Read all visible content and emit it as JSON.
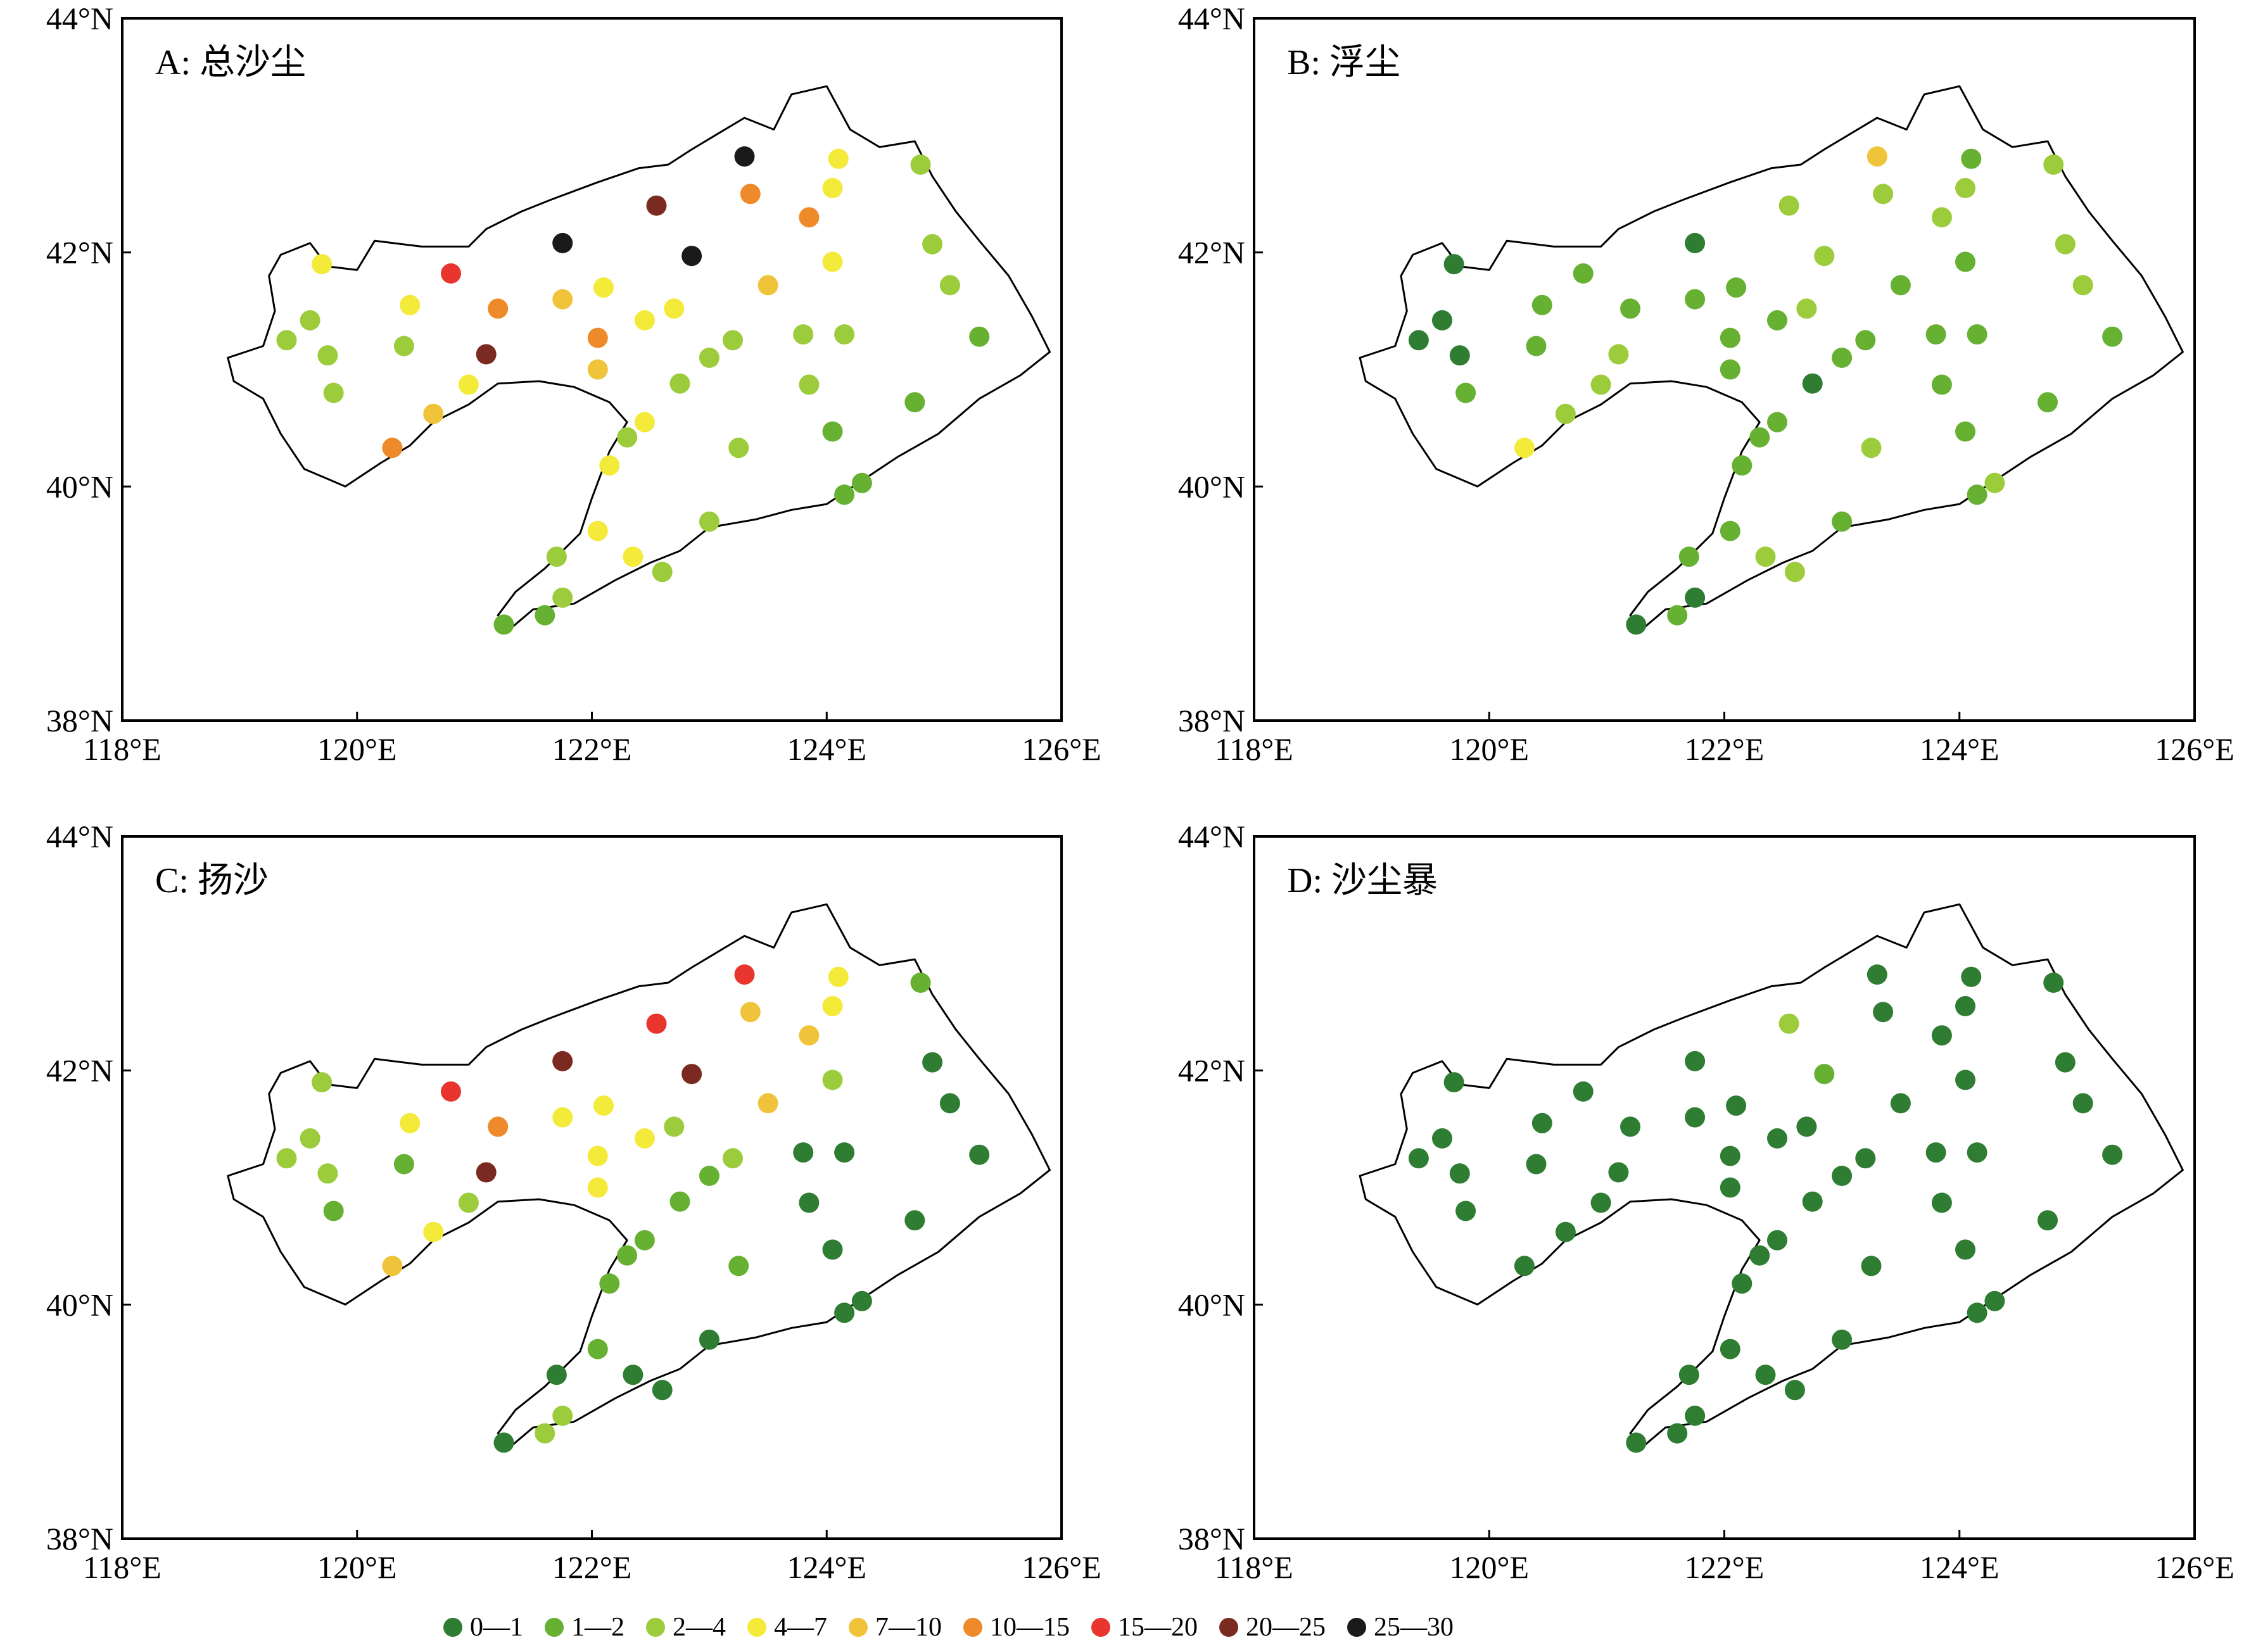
{
  "legend": [
    {
      "label": "0—1",
      "color": "#2e7d32"
    },
    {
      "label": "1—2",
      "color": "#66b032"
    },
    {
      "label": "2—4",
      "color": "#9ccc3c"
    },
    {
      "label": "4—7",
      "color": "#f3ea3a"
    },
    {
      "label": "7—10",
      "color": "#f0c43a"
    },
    {
      "label": "10—15",
      "color": "#ee8a2a"
    },
    {
      "label": "15—20",
      "color": "#e8352e"
    },
    {
      "label": "20—25",
      "color": "#7a2a20"
    },
    {
      "label": "25—30",
      "color": "#1a1a1a"
    }
  ],
  "chart_data": {
    "type": "map",
    "extent": {
      "lon": [
        118,
        126
      ],
      "lat": [
        38,
        44
      ]
    },
    "x_ticks": [
      "118°E",
      "120°E",
      "122°E",
      "124°E",
      "126°E"
    ],
    "y_ticks": [
      "38°N",
      "40°N",
      "42°N",
      "44°N"
    ],
    "stations": [
      [
        119.4,
        41.25
      ],
      [
        119.6,
        41.42
      ],
      [
        119.7,
        41.9
      ],
      [
        119.75,
        41.12
      ],
      [
        119.8,
        40.8
      ],
      [
        120.3,
        40.33
      ],
      [
        120.4,
        41.2
      ],
      [
        120.45,
        41.55
      ],
      [
        120.65,
        40.62
      ],
      [
        120.8,
        41.82
      ],
      [
        120.95,
        40.87
      ],
      [
        121.1,
        41.13
      ],
      [
        121.2,
        41.52
      ],
      [
        121.25,
        38.82
      ],
      [
        121.6,
        38.9
      ],
      [
        121.75,
        39.05
      ],
      [
        121.7,
        39.4
      ],
      [
        121.75,
        42.08
      ],
      [
        121.75,
        41.6
      ],
      [
        122.05,
        39.62
      ],
      [
        122.05,
        41.27
      ],
      [
        122.05,
        41.0
      ],
      [
        122.1,
        41.7
      ],
      [
        122.15,
        40.18
      ],
      [
        122.3,
        40.42
      ],
      [
        122.35,
        39.4
      ],
      [
        122.45,
        40.55
      ],
      [
        122.45,
        41.42
      ],
      [
        122.55,
        42.4
      ],
      [
        122.6,
        39.27
      ],
      [
        122.7,
        41.52
      ],
      [
        122.75,
        40.88
      ],
      [
        122.85,
        41.97
      ],
      [
        123.0,
        41.1
      ],
      [
        123.0,
        39.7
      ],
      [
        123.2,
        41.25
      ],
      [
        123.25,
        40.33
      ],
      [
        123.3,
        42.82
      ],
      [
        123.35,
        42.5
      ],
      [
        123.5,
        41.72
      ],
      [
        123.8,
        41.3
      ],
      [
        123.85,
        42.3
      ],
      [
        123.85,
        40.87
      ],
      [
        124.05,
        41.92
      ],
      [
        124.05,
        42.55
      ],
      [
        124.05,
        40.47
      ],
      [
        124.1,
        42.8
      ],
      [
        124.15,
        41.3
      ],
      [
        124.15,
        39.93
      ],
      [
        124.3,
        40.03
      ],
      [
        124.75,
        40.72
      ],
      [
        124.8,
        42.75
      ],
      [
        124.9,
        42.07
      ],
      [
        125.05,
        41.72
      ],
      [
        125.3,
        41.28
      ]
    ],
    "panels": [
      {
        "key": "A",
        "title": "A: 总沙尘",
        "classes": [
          2,
          2,
          3,
          2,
          2,
          5,
          2,
          3,
          4,
          6,
          3,
          7,
          5,
          1,
          1,
          2,
          2,
          8,
          4,
          3,
          5,
          4,
          3,
          3,
          2,
          3,
          3,
          3,
          7,
          2,
          3,
          2,
          8,
          2,
          2,
          2,
          2,
          8,
          5,
          4,
          2,
          5,
          2,
          3,
          3,
          1,
          3,
          2,
          1,
          1,
          1,
          2,
          2,
          2,
          1
        ]
      },
      {
        "key": "B",
        "title": "B: 浮尘",
        "classes": [
          0,
          0,
          0,
          0,
          1,
          3,
          1,
          1,
          2,
          1,
          2,
          2,
          1,
          0,
          1,
          0,
          1,
          0,
          1,
          1,
          1,
          1,
          1,
          1,
          1,
          2,
          1,
          1,
          2,
          2,
          2,
          0,
          2,
          1,
          1,
          1,
          2,
          4,
          2,
          1,
          1,
          2,
          1,
          1,
          2,
          1,
          1,
          1,
          1,
          2,
          1,
          2,
          2,
          2,
          1
        ]
      },
      {
        "key": "C",
        "title": "C: 扬沙",
        "classes": [
          2,
          2,
          2,
          2,
          1,
          4,
          1,
          3,
          3,
          6,
          2,
          7,
          5,
          0,
          2,
          2,
          0,
          7,
          3,
          1,
          3,
          3,
          3,
          1,
          1,
          0,
          1,
          3,
          6,
          0,
          2,
          1,
          7,
          1,
          0,
          2,
          1,
          6,
          4,
          4,
          0,
          4,
          0,
          2,
          3,
          0,
          3,
          0,
          0,
          0,
          0,
          1,
          0,
          0,
          0
        ]
      },
      {
        "key": "D",
        "title": "D: 沙尘暴",
        "classes": [
          0,
          0,
          0,
          0,
          0,
          0,
          0,
          0,
          0,
          0,
          0,
          0,
          0,
          0,
          0,
          0,
          0,
          0,
          0,
          0,
          0,
          0,
          0,
          0,
          0,
          0,
          0,
          0,
          2,
          0,
          0,
          0,
          1,
          0,
          0,
          0,
          0,
          0,
          0,
          0,
          0,
          0,
          0,
          0,
          0,
          0,
          0,
          0,
          0,
          0,
          0,
          0,
          0,
          0,
          0
        ]
      }
    ]
  }
}
